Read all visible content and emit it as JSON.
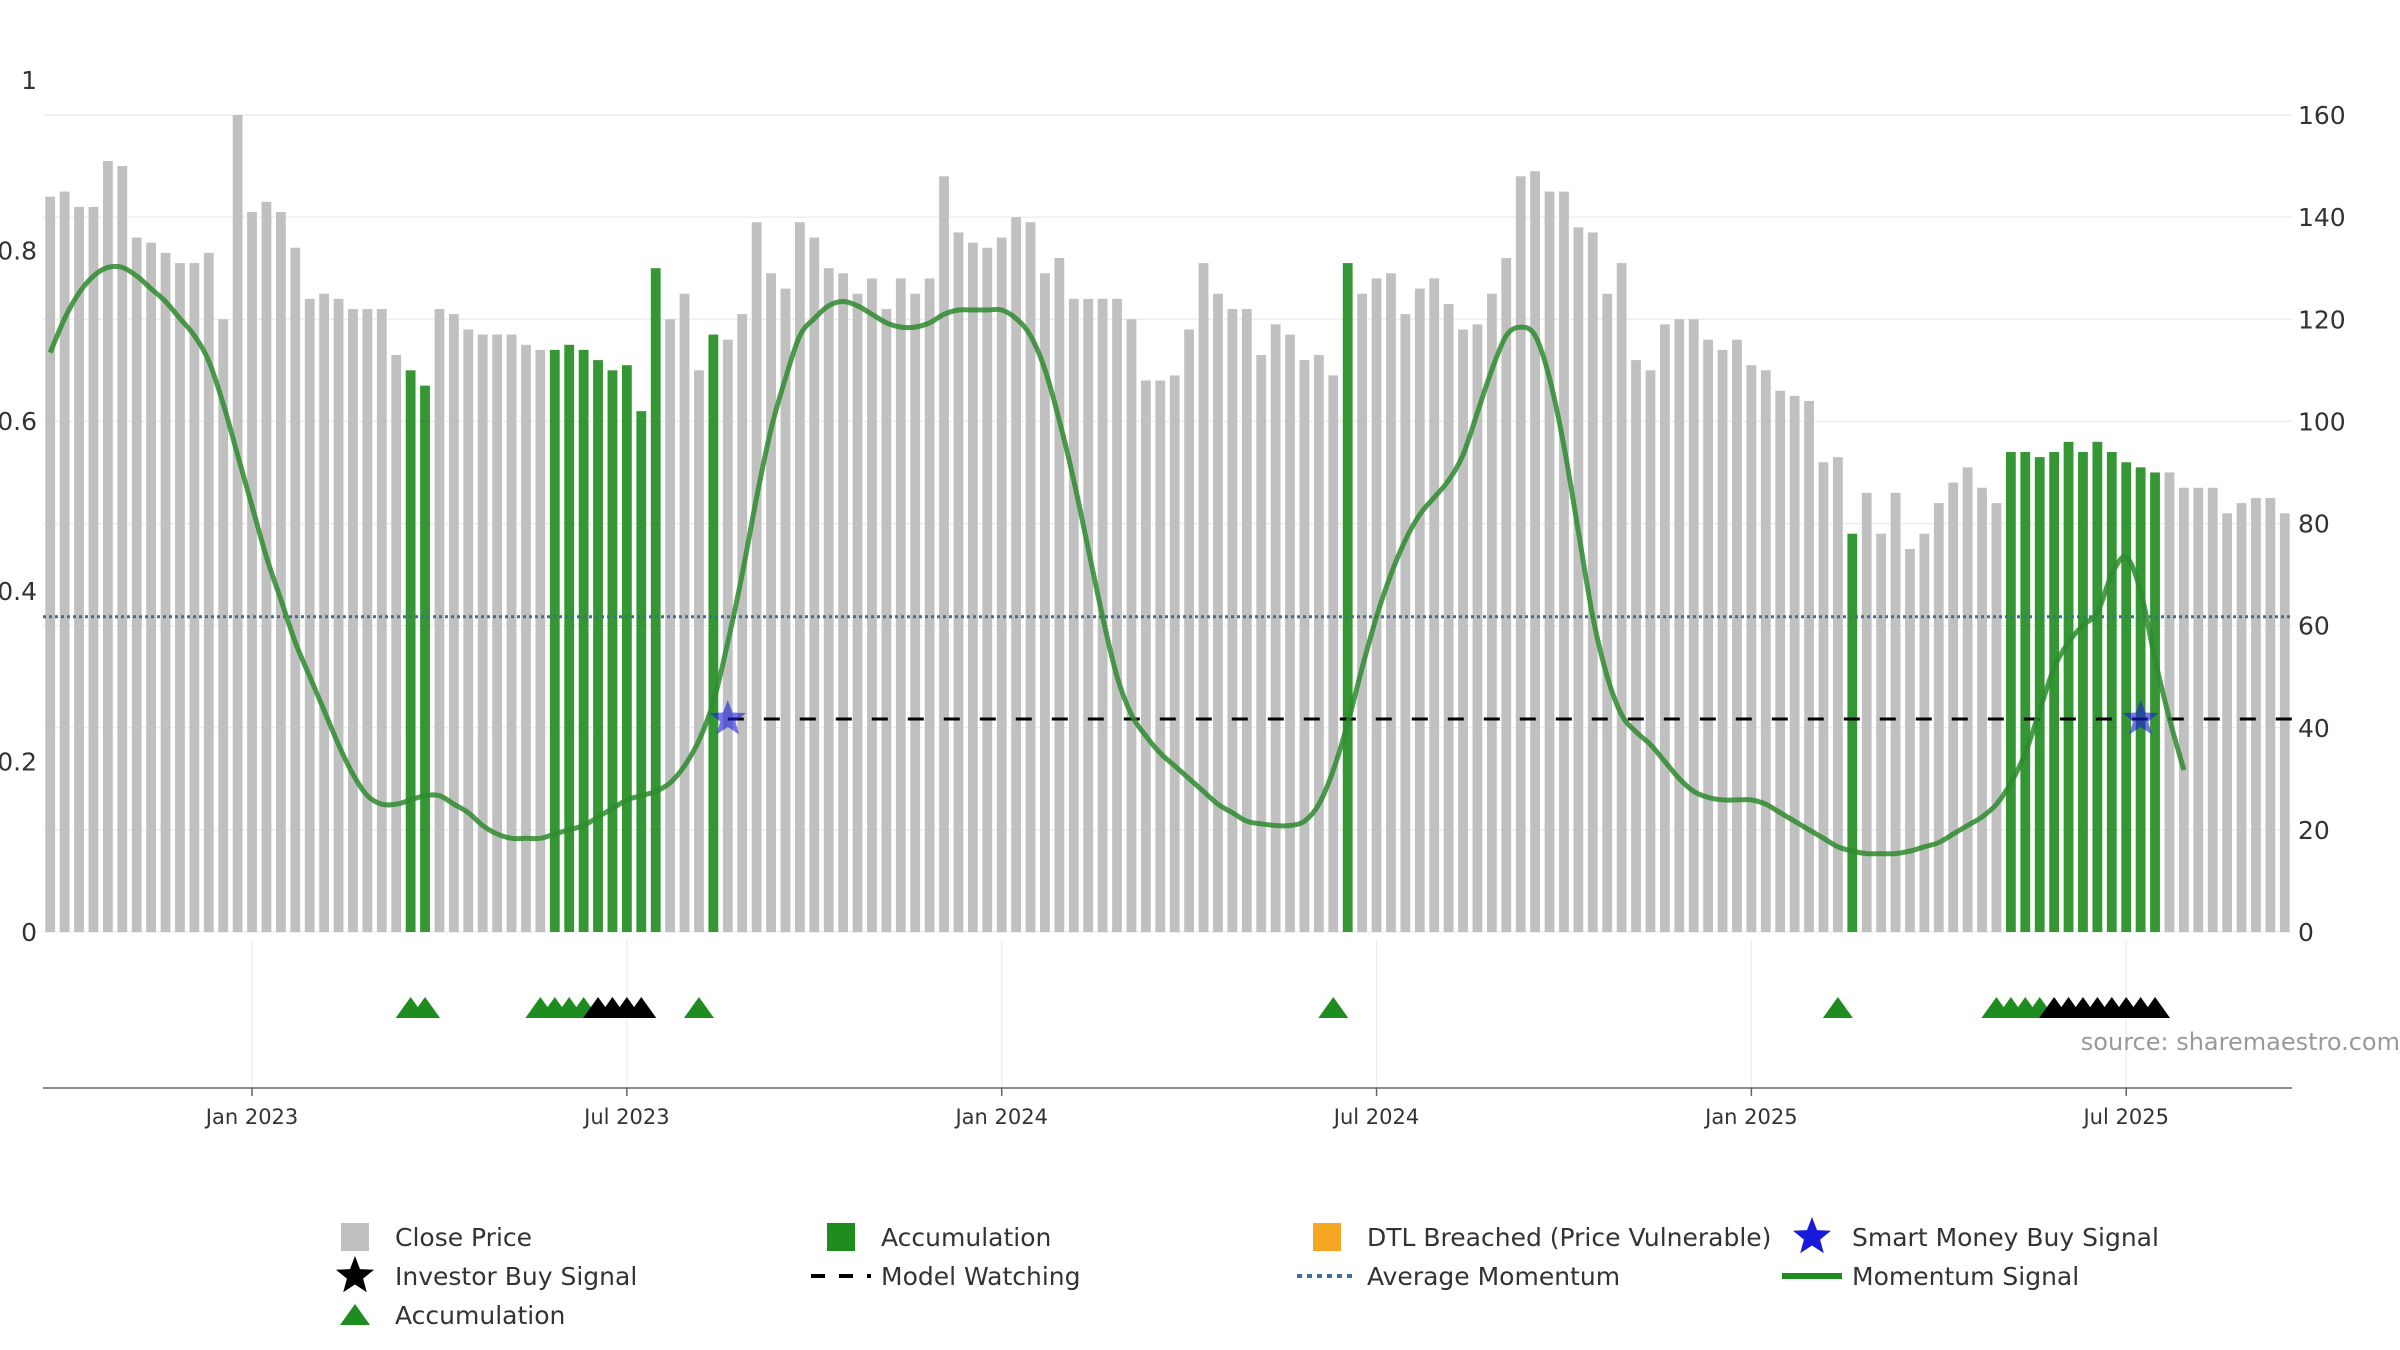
{
  "chart_data": {
    "type": "bar",
    "source": "source: sharemaestro.com",
    "colors": {
      "close": "#c0c0c0",
      "accumulation": "#1e8c1e",
      "momentum": "#2e8b2e",
      "average": "#3a6fa0",
      "watching": "#000000",
      "smart_money": "#1a1adb",
      "investor": "#000000",
      "dtl": "#f5a623"
    },
    "left_axis": {
      "range": [
        0,
        1
      ],
      "ticks": [
        "0",
        "0.2",
        "0.4",
        "0.6",
        "0.8",
        "1"
      ]
    },
    "right_axis": {
      "range": [
        0,
        160
      ],
      "ticks": [
        "0",
        "20",
        "40",
        "60",
        "80",
        "100",
        "120",
        "140",
        "160"
      ]
    },
    "x_labels": [
      "Jan 2023",
      "Jul 2023",
      "Jan 2024",
      "Jul 2024",
      "Jan 2025",
      "Jul 2025"
    ],
    "x_label_index": [
      14,
      40,
      66,
      92,
      118,
      144
    ],
    "close": [
      144,
      145,
      142,
      142,
      151,
      150,
      136,
      135,
      133,
      131,
      131,
      133,
      120,
      160,
      141,
      143,
      141,
      134,
      124,
      125,
      124,
      122,
      122,
      122,
      113,
      110,
      107,
      122,
      121,
      118,
      117,
      117,
      117,
      115,
      114,
      114,
      115,
      114,
      112,
      110,
      111,
      102,
      130,
      120,
      125,
      110,
      117,
      116,
      121,
      139,
      129,
      126,
      139,
      136,
      130,
      129,
      125,
      128,
      122,
      128,
      125,
      128,
      148,
      137,
      135,
      134,
      136,
      140,
      139,
      129,
      132,
      124,
      124,
      124,
      124,
      120,
      108,
      108,
      109,
      118,
      131,
      125,
      122,
      122,
      113,
      119,
      117,
      112,
      113,
      109,
      131,
      125,
      128,
      129,
      121,
      126,
      128,
      123,
      118,
      119,
      125,
      132,
      148,
      149,
      145,
      145,
      138,
      137,
      125,
      131,
      112,
      110,
      119,
      120,
      120,
      116,
      114,
      116,
      111,
      110,
      106,
      105,
      104,
      92,
      93,
      78,
      86,
      78,
      86,
      75,
      78,
      84,
      88,
      91,
      87,
      84,
      94,
      94,
      93,
      94,
      96,
      94,
      96,
      94,
      92,
      91,
      90,
      90,
      87,
      87,
      87,
      82,
      84,
      85,
      85,
      82
    ],
    "accumulation_bars": [
      25,
      26,
      35,
      36,
      37,
      38,
      39,
      40,
      41,
      42,
      46,
      90,
      125,
      136,
      137,
      138,
      139,
      140,
      141,
      142,
      143,
      144,
      145,
      146
    ],
    "momentum": [
      0.68,
      0.72,
      0.75,
      0.77,
      0.78,
      0.78,
      0.77,
      0.755,
      0.74,
      0.72,
      0.7,
      0.67,
      0.62,
      0.56,
      0.5,
      0.44,
      0.39,
      0.34,
      0.3,
      0.26,
      0.22,
      0.185,
      0.16,
      0.15,
      0.15,
      0.155,
      0.16,
      0.16,
      0.15,
      0.14,
      0.125,
      0.115,
      0.11,
      0.11,
      0.11,
      0.115,
      0.12,
      0.125,
      0.135,
      0.145,
      0.155,
      0.16,
      0.165,
      0.175,
      0.195,
      0.225,
      0.27,
      0.34,
      0.42,
      0.51,
      0.59,
      0.65,
      0.7,
      0.72,
      0.735,
      0.74,
      0.735,
      0.725,
      0.715,
      0.71,
      0.71,
      0.715,
      0.725,
      0.73,
      0.73,
      0.73,
      0.73,
      0.72,
      0.7,
      0.66,
      0.6,
      0.53,
      0.45,
      0.37,
      0.3,
      0.255,
      0.23,
      0.21,
      0.195,
      0.18,
      0.165,
      0.15,
      0.14,
      0.13,
      0.127,
      0.125,
      0.125,
      0.13,
      0.15,
      0.19,
      0.245,
      0.31,
      0.37,
      0.42,
      0.46,
      0.49,
      0.51,
      0.53,
      0.56,
      0.61,
      0.66,
      0.7,
      0.71,
      0.7,
      0.65,
      0.57,
      0.47,
      0.37,
      0.3,
      0.255,
      0.235,
      0.22,
      0.2,
      0.18,
      0.165,
      0.158,
      0.155,
      0.155,
      0.155,
      0.15,
      0.14,
      0.13,
      0.12,
      0.11,
      0.1,
      0.095,
      0.092,
      0.092,
      0.092,
      0.095,
      0.1,
      0.105,
      0.115,
      0.125,
      0.135,
      0.15,
      0.175,
      0.21,
      0.26,
      0.31,
      0.34,
      0.36,
      0.375,
      0.42,
      0.44,
      0.4,
      0.32,
      0.25,
      0.19
    ],
    "average_momentum": 0.37,
    "model_watching": {
      "start": 47,
      "end": 156,
      "value": 0.25
    },
    "smart_money_signals": [
      {
        "index": 47,
        "value": 0.25
      },
      {
        "index": 145,
        "value": 0.25
      }
    ],
    "accumulation_triangles": [
      25,
      26,
      34,
      35,
      36,
      37,
      45,
      89,
      124,
      135,
      136,
      137,
      138
    ],
    "investor_triangles": [
      38,
      39,
      40,
      41,
      139,
      140,
      141,
      142,
      143,
      144,
      145,
      146
    ],
    "legend": [
      {
        "label": "Close Price",
        "marker": "square",
        "color_key": "close"
      },
      {
        "label": "Accumulation",
        "marker": "square",
        "color_key": "accumulation"
      },
      {
        "label": "DTL Breached (Price Vulnerable)",
        "marker": "square",
        "color_key": "dtl"
      },
      {
        "label": "Smart Money Buy Signal",
        "marker": "star",
        "color_key": "smart_money"
      },
      {
        "label": "Investor Buy Signal",
        "marker": "star",
        "color_key": "investor"
      },
      {
        "label": "Model Watching",
        "marker": "dash",
        "color_key": "watching"
      },
      {
        "label": "Average Momentum",
        "marker": "dotted",
        "color_key": "average"
      },
      {
        "label": "Momentum Signal",
        "marker": "line",
        "color_key": "accumulation"
      },
      {
        "label": "Accumulation",
        "marker": "triangle",
        "color_key": "accumulation"
      }
    ]
  }
}
